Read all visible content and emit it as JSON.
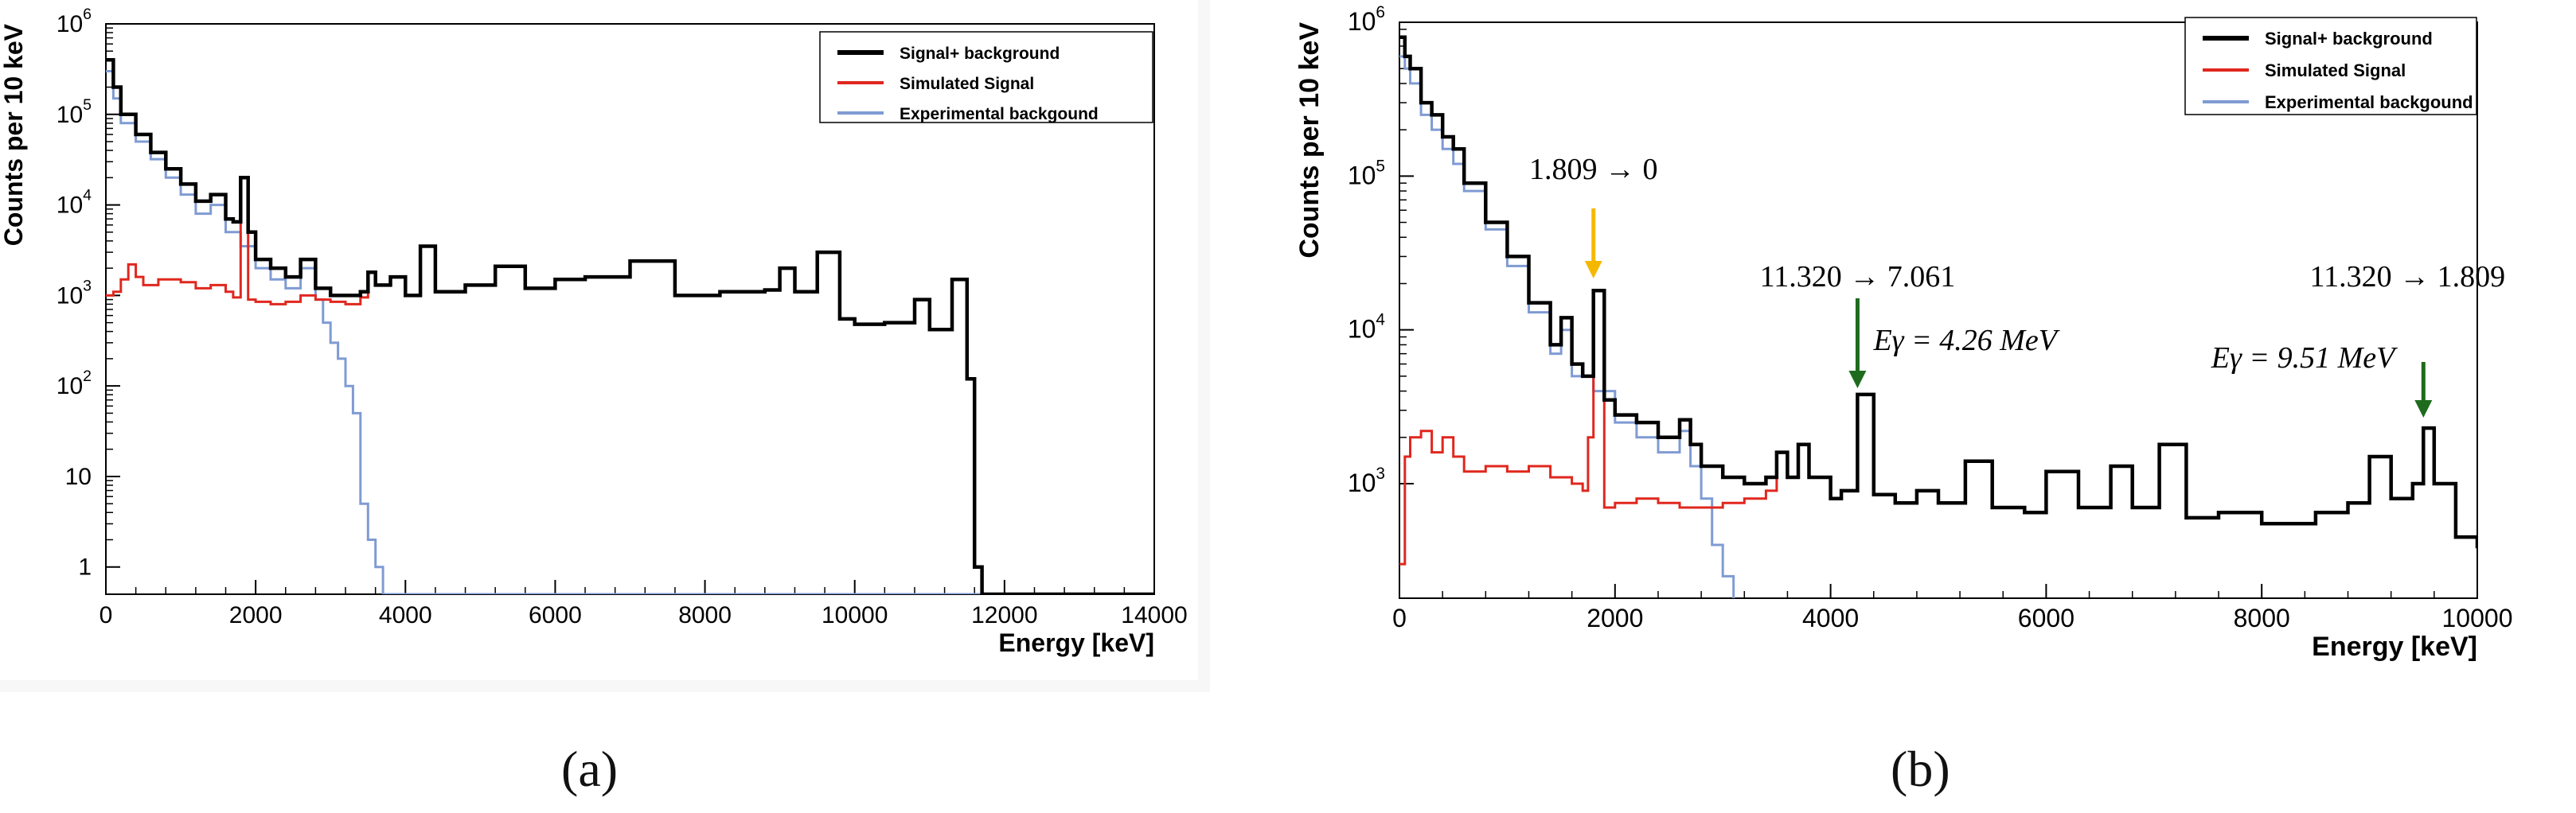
{
  "panels": [
    {
      "caption": "(a)",
      "chart_data": {
        "type": "line",
        "title": "",
        "xlabel": "Energy [keV]",
        "ylabel": "Counts per 10 keV",
        "xlim": [
          0,
          14000
        ],
        "ylim": [
          0.5,
          1000000
        ],
        "yscale": "log",
        "xticks": [
          0,
          2000,
          4000,
          6000,
          8000,
          10000,
          12000,
          14000
        ],
        "xtick_labels": [
          "0",
          "2000",
          "4000",
          "6000",
          "8000",
          "10000",
          "12000",
          "14000"
        ],
        "yticks": [
          1,
          10,
          100,
          1000,
          10000,
          100000,
          1000000
        ],
        "ytick_labels": [
          "1",
          "10",
          "10^2",
          "10^3",
          "10^4",
          "10^5",
          "10^6"
        ],
        "legend_position": "top-right",
        "series": [
          {
            "name": "Signal+ background",
            "color": "#000000",
            "x": [
              0,
              100,
              200,
              400,
              600,
              800,
              1000,
              1200,
              1400,
              1600,
              1700,
              1800,
              1900,
              2000,
              2200,
              2400,
              2600,
              2800,
              3000,
              3200,
              3400,
              3500,
              3600,
              3800,
              4000,
              4200,
              4400,
              4800,
              5200,
              5600,
              6000,
              6400,
              7000,
              7600,
              8200,
              8800,
              9000,
              9200,
              9500,
              9800,
              10000,
              10400,
              10800,
              11000,
              11300,
              11500,
              11600,
              11700,
              14000
            ],
            "y": [
              400000,
              200000,
              100000,
              60000,
              38000,
              25000,
              17000,
              11000,
              13000,
              7000,
              6500,
              20000,
              5000,
              2500,
              2000,
              1600,
              2500,
              1200,
              1000,
              1000,
              1100,
              1800,
              1300,
              1600,
              1000,
              3500,
              1100,
              1300,
              2100,
              1200,
              1500,
              1600,
              2400,
              1000,
              1100,
              1150,
              2000,
              1100,
              3000,
              550,
              480,
              500,
              900,
              420,
              1500,
              120,
              1,
              0.5,
              0.5
            ]
          },
          {
            "name": "Simulated Signal",
            "color": "#e0271e",
            "x": [
              0,
              100,
              200,
              300,
              400,
              500,
              700,
              1000,
              1200,
              1400,
              1600,
              1700,
              1800,
              1900,
              2000,
              2200,
              2400,
              2600,
              2800,
              3000,
              3200,
              3400,
              3500,
              3600,
              3800,
              4000,
              4200,
              4400,
              4800,
              5200,
              5600,
              6000,
              6400,
              7000,
              7600,
              8200,
              8800,
              9000,
              9200,
              9500,
              9800,
              10000,
              10400,
              10800,
              11000,
              11300,
              11500,
              11600,
              11700,
              14000
            ],
            "y": [
              1000,
              1100,
              1500,
              2200,
              1600,
              1300,
              1500,
              1400,
              1200,
              1300,
              1100,
              950,
              20000,
              900,
              850,
              800,
              850,
              1000,
              900,
              850,
              800,
              950,
              1800,
              1300,
              1600,
              1000,
              3500,
              1100,
              1300,
              2100,
              1200,
              1500,
              1600,
              2400,
              1000,
              1100,
              1150,
              2000,
              1100,
              3000,
              550,
              480,
              500,
              900,
              420,
              1500,
              120,
              1,
              0.5,
              0.5
            ]
          },
          {
            "name": "Experimental backgound",
            "color": "#7f9bd3",
            "x": [
              0,
              100,
              200,
              400,
              600,
              800,
              1000,
              1200,
              1400,
              1600,
              1800,
              2000,
              2200,
              2400,
              2600,
              2800,
              2900,
              3000,
              3100,
              3200,
              3300,
              3400,
              3500,
              3600,
              3700,
              3800,
              14000
            ],
            "y": [
              300000,
              150000,
              80000,
              50000,
              32000,
              20000,
              13000,
              8000,
              10000,
              5000,
              3500,
              2000,
              1500,
              1200,
              2000,
              900,
              500,
              300,
              200,
              100,
              50,
              5,
              2,
              1,
              0.5,
              0.5,
              0.5
            ]
          }
        ]
      }
    },
    {
      "caption": "(b)",
      "chart_data": {
        "type": "line",
        "title": "",
        "xlabel": "Energy [keV]",
        "ylabel": "Counts per 10 keV",
        "xlim": [
          0,
          10000
        ],
        "ylim": [
          180,
          1000000
        ],
        "yscale": "log",
        "xticks": [
          0,
          2000,
          4000,
          6000,
          8000,
          10000
        ],
        "xtick_labels": [
          "0",
          "2000",
          "4000",
          "6000",
          "8000",
          "10000"
        ],
        "yticks": [
          1000,
          10000,
          100000,
          1000000
        ],
        "ytick_labels": [
          "10^3",
          "10^4",
          "10^5",
          "10^6"
        ],
        "legend_position": "top-right",
        "annotations": [
          {
            "text": "1.809 → 0",
            "x": 1800,
            "y": 18000,
            "arrow_color": "#f5b800"
          },
          {
            "text": "11.320 → 7.061",
            "x": 4250,
            "y": 3800,
            "arrow_color": "#1e6b1e"
          },
          {
            "text": "Eγ = 4.26 MeV",
            "x": 4250,
            "y": 3800
          },
          {
            "text": "11.320 → 1.809",
            "x": 9500,
            "y": 2300,
            "arrow_color": "#1e6b1e"
          },
          {
            "text": "Eγ = 9.51 MeV",
            "x": 9500,
            "y": 2300
          }
        ],
        "series": [
          {
            "name": "Signal+ background",
            "color": "#000000",
            "x": [
              0,
              50,
              100,
              200,
              300,
              400,
              500,
              600,
              800,
              1000,
              1200,
              1400,
              1500,
              1600,
              1700,
              1800,
              1900,
              2000,
              2200,
              2400,
              2600,
              2700,
              2800,
              3000,
              3200,
              3400,
              3500,
              3600,
              3700,
              3800,
              4000,
              4100,
              4250,
              4400,
              4600,
              4800,
              5000,
              5250,
              5500,
              5800,
              6000,
              6300,
              6600,
              6800,
              7050,
              7300,
              7600,
              8000,
              8500,
              8800,
              9000,
              9200,
              9400,
              9500,
              9600,
              9800,
              10000
            ],
            "y": [
              800000,
              600000,
              500000,
              300000,
              250000,
              180000,
              150000,
              90000,
              50000,
              30000,
              15000,
              8000,
              12000,
              6000,
              5000,
              18000,
              3500,
              2800,
              2500,
              2000,
              2600,
              1800,
              1300,
              1100,
              1000,
              1100,
              1600,
              1100,
              1800,
              1100,
              800,
              900,
              3800,
              850,
              750,
              900,
              750,
              1400,
              700,
              650,
              1200,
              700,
              1300,
              700,
              1800,
              600,
              650,
              550,
              650,
              750,
              1500,
              800,
              1000,
              2300,
              1000,
              450,
              380
            ]
          },
          {
            "name": "Simulated Signal",
            "color": "#e0271e",
            "x": [
              0,
              50,
              100,
              200,
              300,
              400,
              500,
              600,
              800,
              1000,
              1200,
              1400,
              1600,
              1700,
              1750,
              1800,
              1900,
              2000,
              2200,
              2400,
              2600,
              2800,
              3000,
              3200,
              3400,
              3500,
              3600,
              3700,
              3800,
              4000,
              4100,
              4250,
              4400,
              4600,
              4800,
              5000,
              5250,
              5500,
              5800,
              6000,
              6300,
              6600,
              6800,
              7050,
              7300,
              7600,
              8000,
              8500,
              8800,
              9000,
              9200,
              9400,
              9500,
              9600,
              9800,
              10000
            ],
            "y": [
              300,
              1500,
              2000,
              2200,
              1600,
              2000,
              1500,
              1200,
              1300,
              1200,
              1300,
              1100,
              1000,
              900,
              2000,
              18000,
              700,
              750,
              800,
              750,
              700,
              700,
              750,
              800,
              900,
              1600,
              1100,
              1800,
              1100,
              800,
              900,
              3800,
              850,
              750,
              900,
              750,
              1400,
              700,
              650,
              1200,
              700,
              1300,
              700,
              1800,
              600,
              650,
              550,
              650,
              750,
              1500,
              800,
              1000,
              2300,
              1000,
              450,
              380
            ]
          },
          {
            "name": "Experimental backgound",
            "color": "#7f9bd3",
            "x": [
              0,
              50,
              100,
              200,
              300,
              400,
              500,
              600,
              800,
              1000,
              1200,
              1400,
              1500,
              1600,
              1800,
              2000,
              2200,
              2400,
              2600,
              2700,
              2800,
              2900,
              3000,
              3100
            ],
            "y": [
              600000,
              500000,
              400000,
              250000,
              200000,
              150000,
              120000,
              80000,
              45000,
              26000,
              13000,
              7000,
              10000,
              5000,
              4000,
              2500,
              2000,
              1600,
              2200,
              1300,
              800,
              400,
              250,
              180
            ]
          }
        ]
      }
    }
  ]
}
